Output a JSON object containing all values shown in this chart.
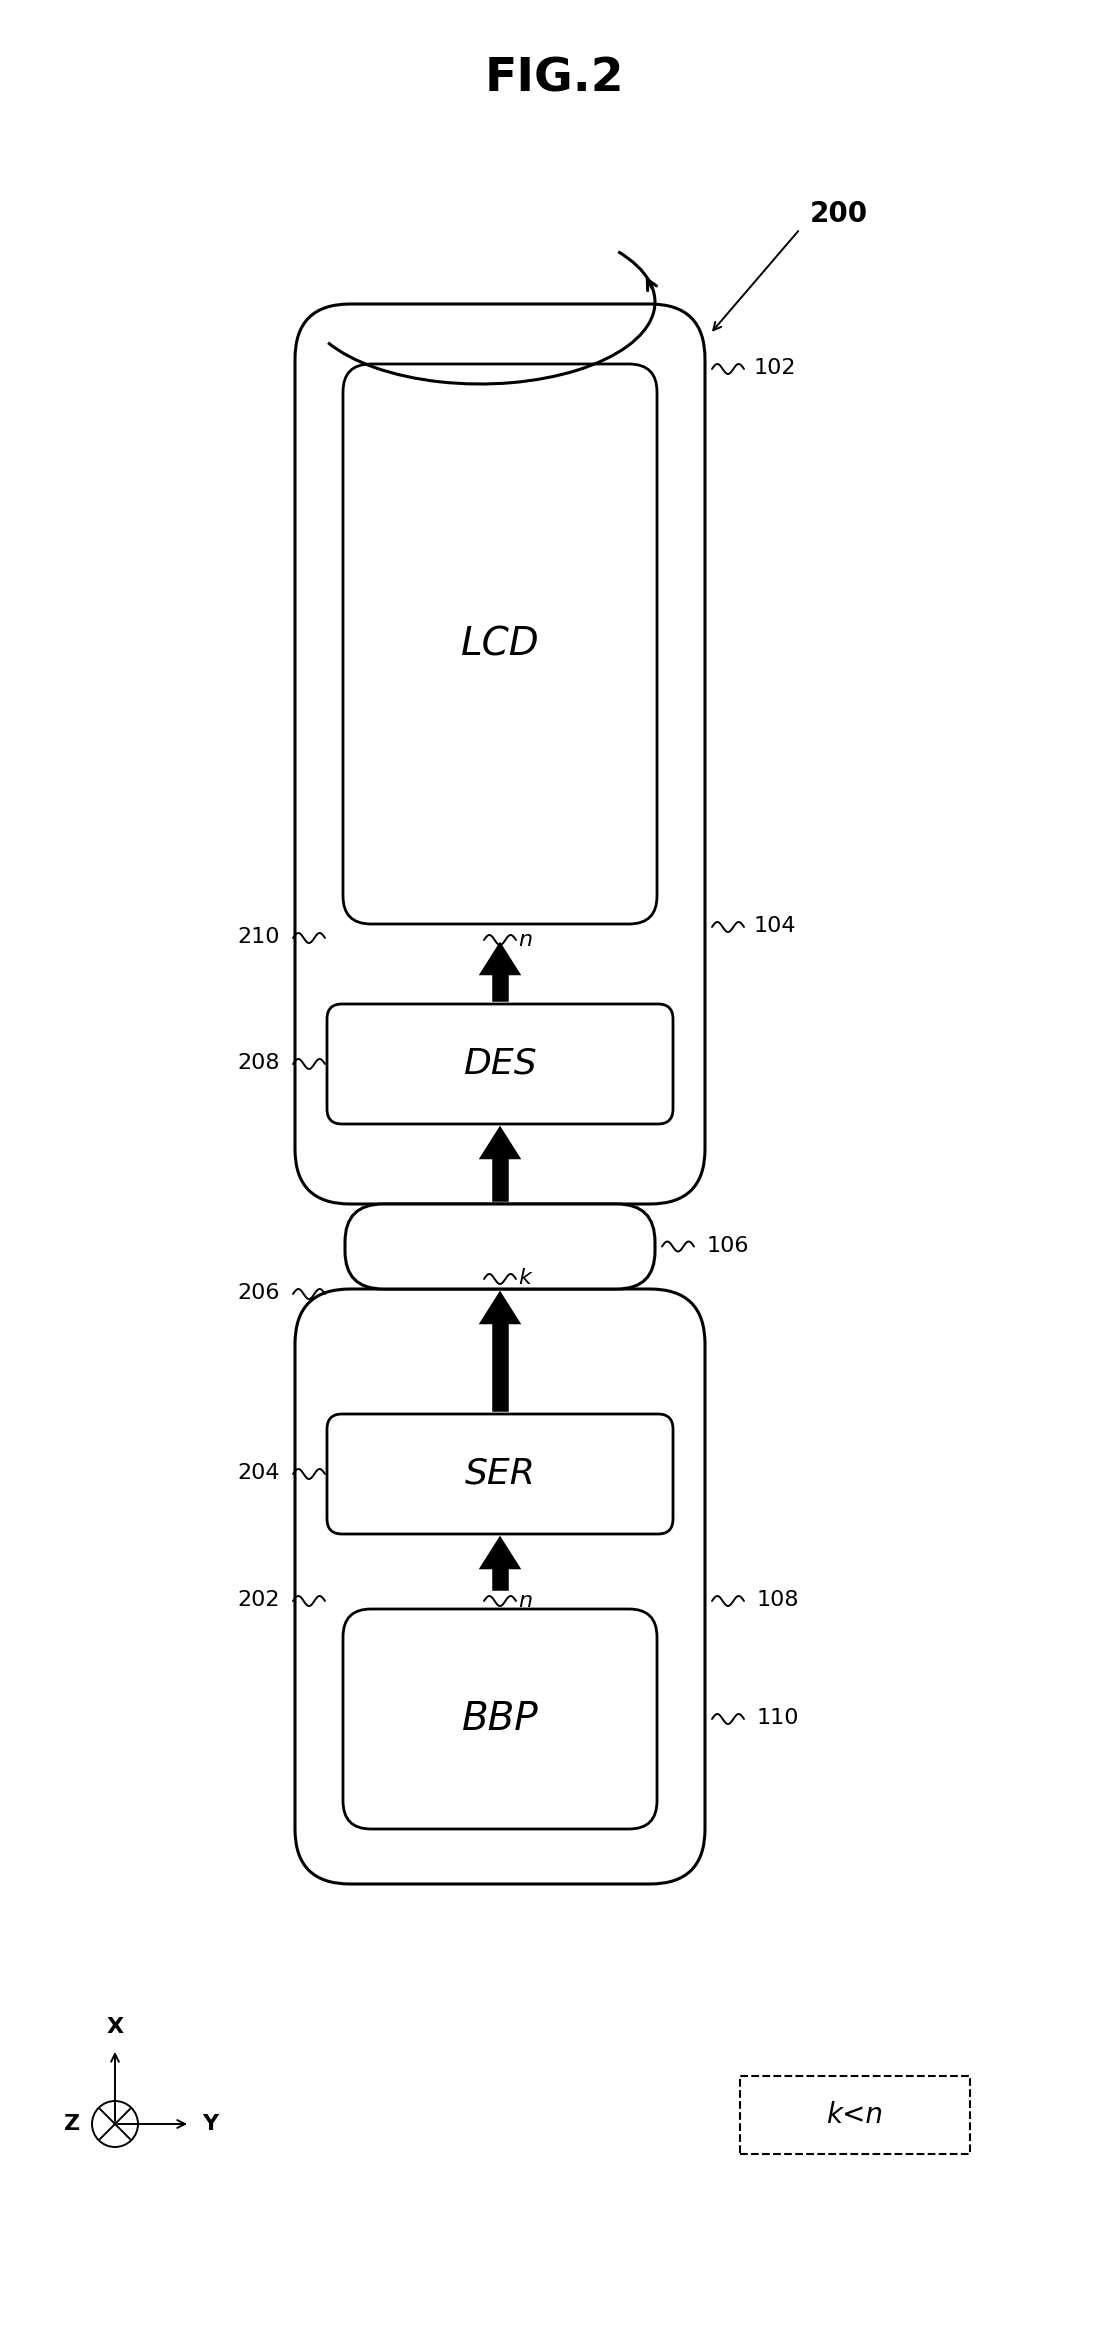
{
  "title": "FIG.2",
  "bg_color": "#ffffff",
  "label_200": "200",
  "label_102": "102",
  "label_104": "104",
  "label_210": "210",
  "label_208": "208",
  "label_106": "106",
  "label_206": "206",
  "label_204": "204",
  "label_202": "202",
  "label_108": "108",
  "label_110": "110",
  "text_LCD": "LCD",
  "text_DES": "DES",
  "text_SER": "SER",
  "text_BBP": "BBP",
  "text_n": "n",
  "text_k": "k",
  "text_kn": "k<n",
  "fig_w": 11.08,
  "fig_h": 23.34,
  "dpi": 100
}
